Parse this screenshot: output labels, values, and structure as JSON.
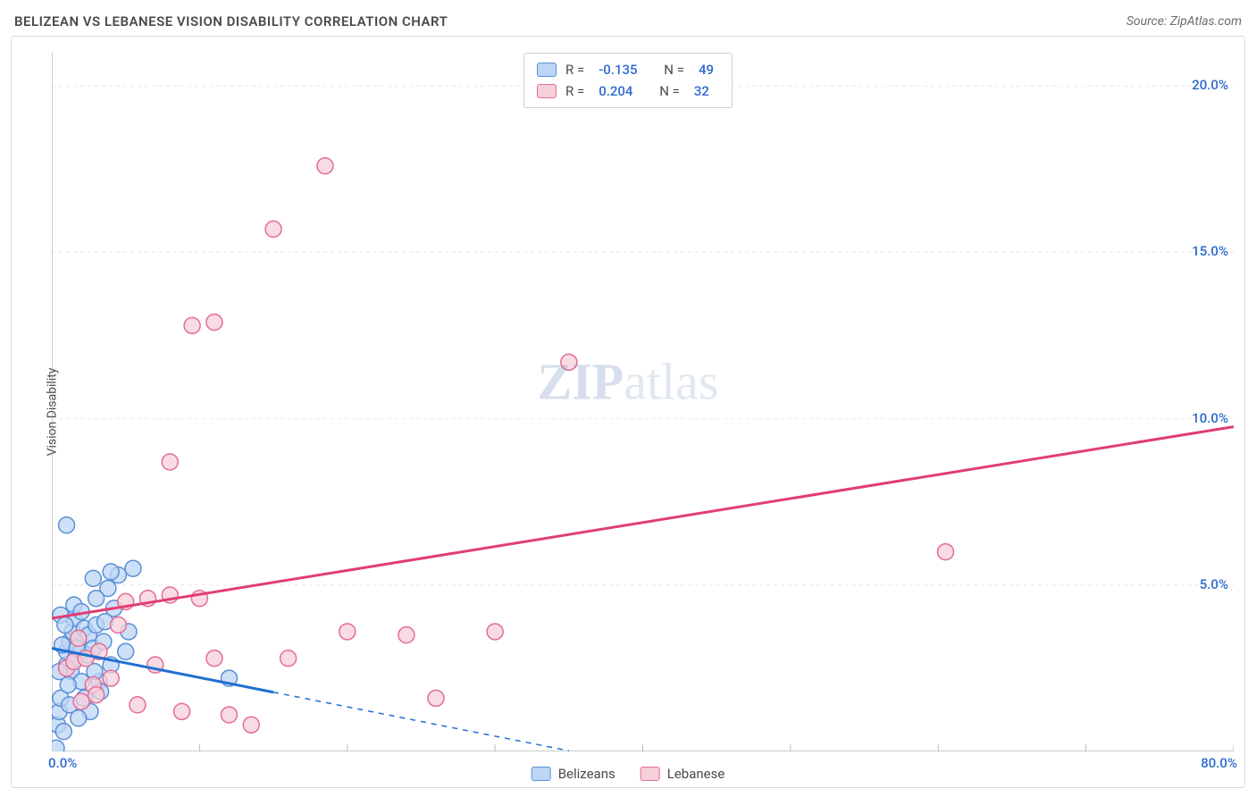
{
  "header": {
    "title": "BELIZEAN VS LEBANESE VISION DISABILITY CORRELATION CHART",
    "source": "Source: ZipAtlas.com"
  },
  "watermark": {
    "bold": "ZIP",
    "rest": "atlas"
  },
  "chart": {
    "type": "scatter-with-trendlines",
    "y_label": "Vision Disability",
    "background_color": "#ffffff",
    "grid_color": "#e7e7e7",
    "border_color": "#d9d9d9",
    "x_axis": {
      "min": 0.0,
      "max": 80.0,
      "ticks": [
        0,
        10,
        20,
        30,
        40,
        50,
        60,
        70,
        80
      ],
      "label_min": "0.0%",
      "label_max": "80.0%",
      "label_color": "#2b6ad0",
      "label_fontsize": 15
    },
    "y_axis": {
      "min": 0.0,
      "max": 21.0,
      "labeled_ticks": [
        5,
        10,
        15,
        20
      ],
      "tick_labels": [
        "5.0%",
        "10.0%",
        "15.0%",
        "20.0%"
      ],
      "label_color": "#2b6ad0",
      "label_fontsize": 15
    },
    "series": [
      {
        "name": "Belizeans",
        "marker_color_fill": "#bcd6f5",
        "marker_color_stroke": "#5a8fd6",
        "marker_radius": 9,
        "trend_color": "#1f6fd1",
        "trend_width": 3,
        "trend_solid_to_x": 15.0,
        "trend_dash_to_x": 35.0,
        "trend": {
          "intercept": 3.1,
          "slope": -0.088
        },
        "R": "-0.135",
        "N": "49",
        "points": [
          [
            0.3,
            0.1
          ],
          [
            0.4,
            0.8
          ],
          [
            0.5,
            1.2
          ],
          [
            0.6,
            1.6
          ],
          [
            0.8,
            0.6
          ],
          [
            1.0,
            2.6
          ],
          [
            1.0,
            3.0
          ],
          [
            1.2,
            3.3
          ],
          [
            1.3,
            2.4
          ],
          [
            1.4,
            3.6
          ],
          [
            1.5,
            4.0
          ],
          [
            0.7,
            3.2
          ],
          [
            1.6,
            2.8
          ],
          [
            1.8,
            3.4
          ],
          [
            2.0,
            3.0
          ],
          [
            2.0,
            2.1
          ],
          [
            1.2,
            1.4
          ],
          [
            2.2,
            3.7
          ],
          [
            2.4,
            2.9
          ],
          [
            2.5,
            3.5
          ],
          [
            2.6,
            1.2
          ],
          [
            2.8,
            3.1
          ],
          [
            3.0,
            3.8
          ],
          [
            3.2,
            2.1
          ],
          [
            3.5,
            3.3
          ],
          [
            3.8,
            4.9
          ],
          [
            4.0,
            2.6
          ],
          [
            4.5,
            5.3
          ],
          [
            5.0,
            3.0
          ],
          [
            5.5,
            5.5
          ],
          [
            1.0,
            6.8
          ],
          [
            2.8,
            5.2
          ],
          [
            4.0,
            5.4
          ],
          [
            1.5,
            4.4
          ],
          [
            0.6,
            4.1
          ],
          [
            12.0,
            2.2
          ],
          [
            2.0,
            4.2
          ],
          [
            3.0,
            4.6
          ],
          [
            1.8,
            1.0
          ],
          [
            2.2,
            1.6
          ],
          [
            0.9,
            3.8
          ],
          [
            1.1,
            2.0
          ],
          [
            3.6,
            3.9
          ],
          [
            4.2,
            4.3
          ],
          [
            0.5,
            2.4
          ],
          [
            1.7,
            3.1
          ],
          [
            2.9,
            2.4
          ],
          [
            3.3,
            1.8
          ],
          [
            5.2,
            3.6
          ]
        ]
      },
      {
        "name": "Lebanese",
        "marker_color_fill": "#f7cfd9",
        "marker_color_stroke": "#e36d95",
        "marker_radius": 9,
        "trend_color": "#e13d74",
        "trend_width": 3,
        "trend_solid_to_x": 80.0,
        "trend": {
          "intercept": 4.0,
          "slope": 0.072
        },
        "R": "0.204",
        "N": "32",
        "points": [
          [
            1.0,
            2.5
          ],
          [
            1.5,
            2.7
          ],
          [
            2.0,
            1.5
          ],
          [
            2.3,
            2.8
          ],
          [
            2.8,
            2.0
          ],
          [
            3.2,
            3.0
          ],
          [
            4.0,
            2.2
          ],
          [
            5.0,
            4.5
          ],
          [
            6.5,
            4.6
          ],
          [
            7.0,
            2.6
          ],
          [
            8.0,
            4.7
          ],
          [
            8.8,
            1.2
          ],
          [
            10.0,
            4.6
          ],
          [
            11.0,
            2.8
          ],
          [
            12.0,
            1.1
          ],
          [
            13.5,
            0.8
          ],
          [
            16.0,
            2.8
          ],
          [
            20.0,
            3.6
          ],
          [
            24.0,
            3.5
          ],
          [
            26.0,
            1.6
          ],
          [
            30.0,
            3.6
          ],
          [
            35.0,
            11.7
          ],
          [
            8.0,
            8.7
          ],
          [
            9.5,
            12.8
          ],
          [
            11.0,
            12.9
          ],
          [
            15.0,
            15.7
          ],
          [
            18.5,
            17.6
          ],
          [
            60.5,
            6.0
          ],
          [
            4.5,
            3.8
          ],
          [
            3.0,
            1.7
          ],
          [
            5.8,
            1.4
          ],
          [
            1.8,
            3.4
          ]
        ]
      }
    ],
    "stats_legend": {
      "rows": [
        {
          "swatch_fill": "#bcd6f5",
          "swatch_stroke": "#5a8fd6",
          "r_label": "R =",
          "r_val": "-0.135",
          "n_label": "N =",
          "n_val": "49"
        },
        {
          "swatch_fill": "#f7cfd9",
          "swatch_stroke": "#e36d95",
          "r_label": "R =",
          "r_val": "0.204",
          "n_label": "N =",
          "n_val": "32"
        }
      ]
    },
    "bottom_legend": {
      "items": [
        {
          "swatch_fill": "#bcd6f5",
          "swatch_stroke": "#5a8fd6",
          "label": "Belizeans"
        },
        {
          "swatch_fill": "#f7cfd9",
          "swatch_stroke": "#e36d95",
          "label": "Lebanese"
        }
      ]
    }
  }
}
